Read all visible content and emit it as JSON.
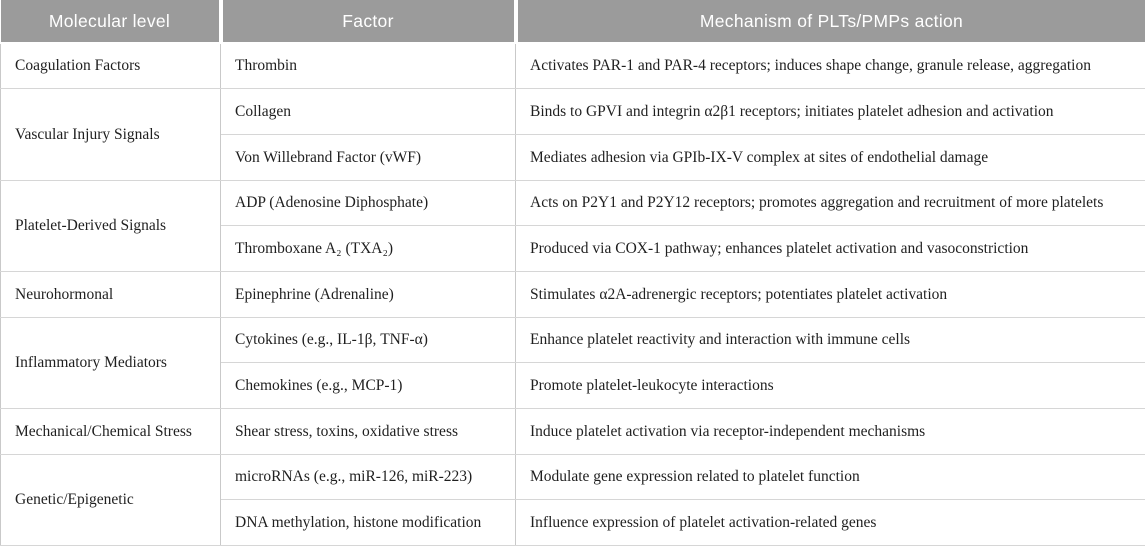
{
  "colors": {
    "header_bg": "#9b9b9b",
    "header_text": "#ffffff",
    "body_text": "#1f1f1f",
    "border_h": "#d6d6d6",
    "border_v": "#c9c9c9"
  },
  "table": {
    "columns": [
      "Molecular level",
      "Factor",
      "Mechanism of PLTs/PMPs action"
    ],
    "rows": [
      {
        "level": "Coagulation Factors",
        "span": 1,
        "factor": "Thrombin",
        "mechanism": "Activates PAR-1 and PAR-4 receptors; induces shape change, granule release, aggregation"
      },
      {
        "level": "Vascular Injury Signals",
        "span": 2,
        "factor": "Collagen",
        "mechanism": "Binds to GPVI and integrin α2β1 receptors; initiates platelet adhesion and activation"
      },
      {
        "factor": "Von Willebrand Factor (vWF)",
        "mechanism": "Mediates adhesion via GPIb-IX-V complex at sites of endothelial damage"
      },
      {
        "level": "Platelet-Derived Signals",
        "span": 2,
        "factor": "ADP (Adenosine Diphosphate)",
        "mechanism": "Acts on P2Y1 and P2Y12 receptors; promotes aggregation and recruitment of more platelets"
      },
      {
        "factor": "Thromboxane A₂ (TXA₂)",
        "mechanism": "Produced via COX-1 pathway; enhances platelet activation and vasoconstriction"
      },
      {
        "level": "Neurohormonal",
        "span": 1,
        "factor": "Epinephrine (Adrenaline)",
        "mechanism": "Stimulates α2A-adrenergic receptors; potentiates platelet activation"
      },
      {
        "level": "Inflammatory Mediators",
        "span": 2,
        "factor": "Cytokines (e.g., IL-1β, TNF-α)",
        "mechanism": "Enhance platelet reactivity and interaction with immune cells"
      },
      {
        "factor": "Chemokines (e.g., MCP-1)",
        "mechanism": "Promote platelet-leukocyte interactions"
      },
      {
        "level": "Mechanical/Chemical Stress",
        "span": 1,
        "factor": "Shear stress, toxins, oxidative stress",
        "mechanism": "Induce platelet activation via receptor-independent mechanisms"
      },
      {
        "level": "Genetic/Epigenetic",
        "span": 2,
        "factor": "microRNAs (e.g., miR-126, miR-223)",
        "mechanism": "Modulate gene expression related to platelet function"
      },
      {
        "factor": "DNA methylation, histone modification",
        "mechanism": "Influence expression of platelet activation-related genes"
      }
    ]
  }
}
